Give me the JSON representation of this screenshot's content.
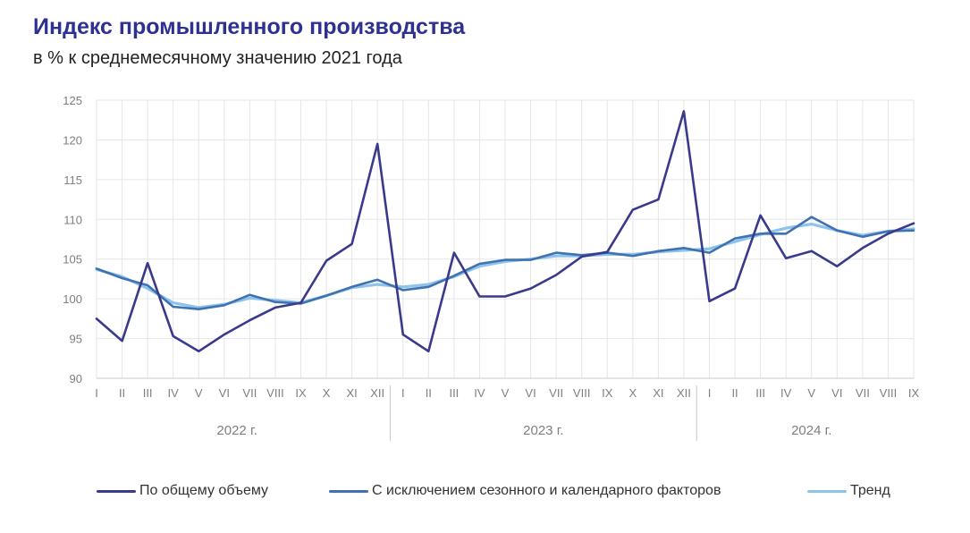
{
  "header": {
    "title": "Индекс промышленного производства",
    "subtitle": "в % к среднемесячному значению 2021 года"
  },
  "colors": {
    "series1": "#3a3a8c",
    "series2": "#3f72b0",
    "series3": "#8ec3ec",
    "grid": "#e6e6e6",
    "axis": "#c8c8c8",
    "text": "#7f7f7f"
  },
  "chart_data": {
    "type": "line",
    "title": "Индекс промышленного производства",
    "subtitle": "в % к среднемесячному значению 2021 года",
    "ylim": [
      90,
      125
    ],
    "yticks": [
      90,
      95,
      100,
      105,
      110,
      115,
      120,
      125
    ],
    "grid": true,
    "legend_position": "bottom",
    "x": [
      "I",
      "II",
      "III",
      "IV",
      "V",
      "VI",
      "VII",
      "VIII",
      "IX",
      "X",
      "XI",
      "XII",
      "I",
      "II",
      "III",
      "IV",
      "V",
      "VI",
      "VII",
      "VIII",
      "IX",
      "X",
      "XI",
      "XII",
      "I",
      "II",
      "III",
      "IV",
      "V",
      "VI",
      "VII",
      "VIII",
      "IX"
    ],
    "year_groups": [
      {
        "label": "2022 г.",
        "count": 12
      },
      {
        "label": "2023 г.",
        "count": 12
      },
      {
        "label": "2024 г.",
        "count": 9
      }
    ],
    "series": [
      {
        "name": "По общему объему",
        "values": [
          97.5,
          94.7,
          104.5,
          95.3,
          93.4,
          95.5,
          97.3,
          98.9,
          99.5,
          104.8,
          106.9,
          119.5,
          95.5,
          93.4,
          105.8,
          100.3,
          100.3,
          101.3,
          103.0,
          105.3,
          105.9,
          111.2,
          112.5,
          123.6,
          99.7,
          101.3,
          110.5,
          105.1,
          106.0,
          104.1,
          106.4,
          108.2,
          109.5
        ]
      },
      {
        "name": "С исключением сезонного и календарного факторов",
        "values": [
          103.8,
          102.6,
          101.7,
          99.0,
          98.7,
          99.2,
          100.5,
          99.6,
          99.4,
          100.4,
          101.5,
          102.4,
          101.1,
          101.5,
          102.9,
          104.4,
          104.9,
          104.9,
          105.8,
          105.5,
          105.8,
          105.4,
          106.0,
          106.4,
          105.8,
          107.6,
          108.2,
          108.2,
          110.3,
          108.6,
          107.8,
          108.5,
          108.6
        ]
      },
      {
        "name": "Тренд",
        "values": [
          103.7,
          102.8,
          101.3,
          99.5,
          98.9,
          99.3,
          100.1,
          99.8,
          99.5,
          100.4,
          101.4,
          101.8,
          101.5,
          101.8,
          102.8,
          104.1,
          104.7,
          105.0,
          105.4,
          105.4,
          105.6,
          105.6,
          105.9,
          106.1,
          106.3,
          107.2,
          108.1,
          108.9,
          109.4,
          108.6,
          108.0,
          108.5,
          108.8
        ]
      }
    ]
  }
}
